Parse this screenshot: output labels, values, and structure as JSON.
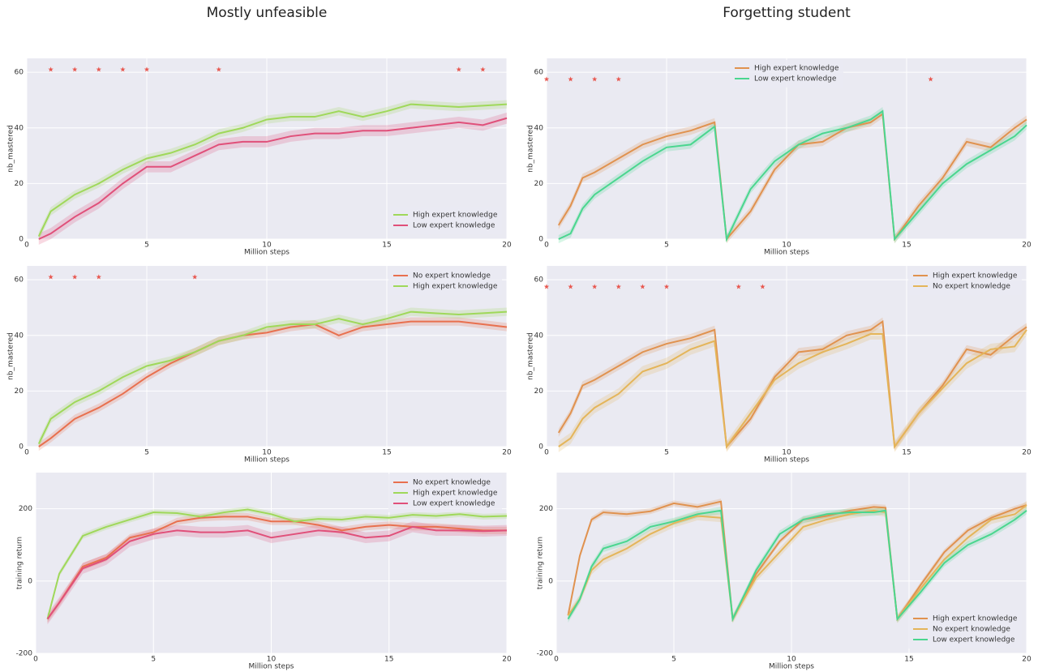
{
  "chart_data": [
    {
      "type": "line",
      "title": "Mostly unfeasible",
      "xlabel": "Million steps",
      "ylabel": "nb_mastered",
      "xlim": [
        0,
        20
      ],
      "ylim": [
        0,
        65
      ],
      "xticks": [
        0,
        5,
        10,
        15,
        20
      ],
      "yticks": [
        0,
        20,
        40,
        60
      ],
      "grid": true,
      "legend": "lower right",
      "x": [
        0.5,
        1,
        2,
        3,
        4,
        5,
        6,
        7,
        8,
        9,
        10,
        11,
        12,
        13,
        14,
        15,
        16,
        17,
        18,
        19,
        20
      ],
      "stars_x": [
        1,
        2,
        3,
        4,
        5,
        8,
        18,
        19
      ],
      "stars_y": 61,
      "series": [
        {
          "name": "High expert knowledge",
          "color": "#9fd85a",
          "error": 1.5,
          "values": [
            1,
            10,
            16,
            20,
            25,
            29,
            31,
            34,
            38,
            40,
            43,
            44,
            44,
            46,
            44,
            46,
            48.5,
            48,
            47.5,
            48,
            48.5
          ]
        },
        {
          "name": "Low expert knowledge",
          "color": "#e0507a",
          "error": 2,
          "values": [
            0,
            2,
            8,
            13,
            20,
            26,
            26,
            30,
            34,
            35,
            35,
            37,
            38,
            38,
            39,
            39,
            40,
            41,
            42,
            41,
            43.5
          ]
        }
      ]
    },
    {
      "type": "line",
      "title": "Forgetting student",
      "xlabel": "Million steps",
      "ylabel": "nb_mastered",
      "xlim": [
        0,
        20
      ],
      "ylim": [
        0,
        65
      ],
      "xticks": [
        0,
        5,
        10,
        15,
        20
      ],
      "yticks": [
        0,
        20,
        40,
        60
      ],
      "grid": true,
      "legend": "upper center",
      "x": [
        0.5,
        1,
        1.5,
        2,
        3,
        4,
        5,
        6,
        7,
        7.5,
        8.5,
        9.5,
        10.5,
        11.5,
        12.5,
        13.5,
        14,
        14.5,
        15.5,
        16.5,
        17.5,
        18.5,
        19.5,
        20
      ],
      "stars_x": [
        0,
        1,
        2,
        3,
        16
      ],
      "stars_y": 57.5,
      "series": [
        {
          "name": "High expert knowledge",
          "color": "#e0924f",
          "error": 1.5,
          "values": [
            5,
            12,
            22,
            24,
            29,
            34,
            37,
            39,
            42,
            0,
            10,
            25,
            34,
            35,
            40,
            42,
            45,
            0,
            12,
            22,
            35,
            33,
            40,
            43
          ]
        },
        {
          "name": "Low expert knowledge",
          "color": "#4ad68f",
          "error": 1.5,
          "values": [
            0,
            2,
            11,
            16,
            22,
            28,
            33,
            34,
            40.5,
            0,
            18,
            28,
            34,
            38,
            40,
            43,
            46,
            0,
            10,
            20,
            27,
            32,
            37,
            41
          ]
        }
      ]
    },
    {
      "type": "line",
      "xlabel": "Million steps",
      "ylabel": "nb_mastered",
      "xlim": [
        0,
        20
      ],
      "ylim": [
        0,
        65
      ],
      "xticks": [
        0,
        5,
        10,
        15,
        20
      ],
      "yticks": [
        0,
        20,
        40,
        60
      ],
      "grid": true,
      "legend": "upper right",
      "x": [
        0.5,
        1,
        2,
        3,
        4,
        5,
        6,
        7,
        8,
        9,
        10,
        11,
        12,
        13,
        14,
        15,
        16,
        17,
        18,
        19,
        20
      ],
      "stars_x": [
        1,
        2,
        3,
        7
      ],
      "stars_y": 61,
      "series": [
        {
          "name": "No expert knowledge",
          "color": "#e8704f",
          "error": 1.5,
          "values": [
            0,
            3,
            10,
            14,
            19,
            25,
            30,
            34,
            38,
            40,
            41,
            43,
            44,
            40,
            43,
            44,
            45,
            45,
            45,
            44,
            43
          ]
        },
        {
          "name": "High expert knowledge",
          "color": "#9fd85a",
          "error": 1.5,
          "values": [
            1,
            10,
            16,
            20,
            25,
            29,
            31,
            34,
            38,
            40,
            43,
            44,
            44,
            46,
            44,
            46,
            48.5,
            48,
            47.5,
            48,
            48.5
          ]
        }
      ]
    },
    {
      "type": "line",
      "xlabel": "Million steps",
      "ylabel": "nb_mastered",
      "xlim": [
        0,
        20
      ],
      "ylim": [
        0,
        65
      ],
      "xticks": [
        0,
        5,
        10,
        15,
        20
      ],
      "yticks": [
        0,
        20,
        40,
        60
      ],
      "grid": true,
      "legend": "upper right",
      "x": [
        0.5,
        1,
        1.5,
        2,
        3,
        4,
        5,
        6,
        7,
        7.5,
        8.5,
        9.5,
        10.5,
        11.5,
        12.5,
        13.5,
        14,
        14.5,
        15.5,
        16.5,
        17.5,
        18.5,
        19.5,
        20
      ],
      "stars_x": [
        0,
        1,
        2,
        3,
        4,
        5,
        8,
        9
      ],
      "stars_y": 57.5,
      "series": [
        {
          "name": "High expert knowledge",
          "color": "#e0924f",
          "error": 1.5,
          "values": [
            5,
            12,
            22,
            24,
            29,
            34,
            37,
            39,
            42,
            0,
            10,
            25,
            34,
            35,
            40,
            42,
            45,
            0,
            12,
            22,
            35,
            33,
            40,
            43
          ]
        },
        {
          "name": "No expert knowledge",
          "color": "#e4b55a",
          "error": 2,
          "values": [
            0,
            3,
            10,
            14,
            19,
            27,
            30,
            35,
            38,
            0,
            12,
            24,
            30,
            34,
            37,
            40.5,
            40.5,
            0,
            12,
            21,
            30,
            35,
            36,
            42
          ]
        }
      ]
    },
    {
      "type": "line",
      "xlabel": "Million steps",
      "ylabel": "training return",
      "xlim": [
        0,
        20
      ],
      "ylim": [
        -200,
        300
      ],
      "xticks": [
        0,
        5,
        10,
        15,
        20
      ],
      "yticks": [
        -200,
        0,
        200
      ],
      "grid": true,
      "legend": "upper right",
      "x": [
        0.5,
        1,
        2,
        3,
        4,
        5,
        6,
        7,
        8,
        9,
        10,
        11,
        12,
        13,
        14,
        15,
        16,
        17,
        18,
        19,
        20
      ],
      "series": [
        {
          "name": "No expert knowledge",
          "color": "#e8704f",
          "error": 10,
          "values": [
            -105,
            -60,
            40,
            65,
            120,
            135,
            165,
            175,
            178,
            178,
            165,
            165,
            155,
            140,
            150,
            155,
            150,
            150,
            145,
            140,
            140
          ]
        },
        {
          "name": "High expert knowledge",
          "color": "#9fd85a",
          "error": 8,
          "values": [
            -105,
            20,
            125,
            150,
            170,
            190,
            188,
            178,
            190,
            198,
            185,
            165,
            172,
            170,
            178,
            175,
            183,
            180,
            185,
            178,
            180
          ]
        },
        {
          "name": "Low expert knowledge",
          "color": "#e0507a",
          "error": 15,
          "values": [
            -105,
            -60,
            35,
            60,
            110,
            130,
            140,
            135,
            135,
            140,
            120,
            130,
            140,
            135,
            120,
            125,
            150,
            140,
            140,
            138,
            140
          ]
        }
      ]
    },
    {
      "type": "line",
      "xlabel": "Million steps",
      "ylabel": "training return",
      "xlim": [
        0,
        20
      ],
      "ylim": [
        -200,
        300
      ],
      "xticks": [
        0,
        5,
        10,
        15,
        20
      ],
      "yticks": [
        -200,
        0,
        200
      ],
      "grid": true,
      "legend": "lower right",
      "x": [
        0.5,
        1,
        1.5,
        2,
        3,
        4,
        5,
        6,
        7,
        7.5,
        8.5,
        9.5,
        10.5,
        11.5,
        12.5,
        13.5,
        14,
        14.5,
        15.5,
        16.5,
        17.5,
        18.5,
        19.5,
        20
      ],
      "series": [
        {
          "name": "High expert knowledge",
          "color": "#e0924f",
          "error": 8,
          "values": [
            -95,
            70,
            170,
            190,
            185,
            193,
            215,
            205,
            220,
            -105,
            20,
            110,
            170,
            180,
            195,
            205,
            203,
            -105,
            -10,
            80,
            140,
            175,
            200,
            210
          ]
        },
        {
          "name": "No expert knowledge",
          "color": "#e4b55a",
          "error": 12,
          "values": [
            -95,
            -50,
            30,
            60,
            90,
            130,
            160,
            180,
            175,
            -105,
            10,
            80,
            150,
            170,
            185,
            195,
            190,
            -105,
            -20,
            60,
            120,
            170,
            185,
            210
          ]
        },
        {
          "name": "Low expert knowledge",
          "color": "#4ad68f",
          "error": 10,
          "values": [
            -105,
            -50,
            40,
            90,
            110,
            150,
            165,
            185,
            195,
            -105,
            30,
            130,
            170,
            185,
            190,
            190,
            195,
            -105,
            -30,
            50,
            100,
            130,
            170,
            195
          ]
        }
      ]
    }
  ]
}
